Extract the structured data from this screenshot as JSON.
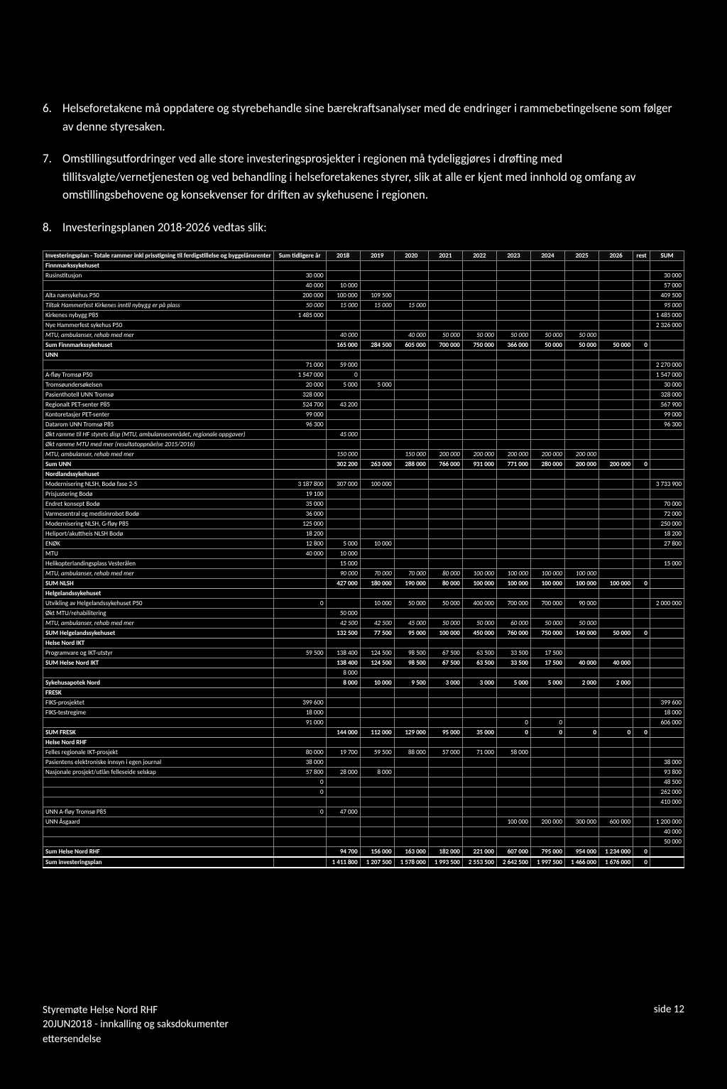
{
  "paragraphs": {
    "p6_num": "6.",
    "p6": "Helseforetakene må oppdatere og styrebehandle sine bærekraftsanalyser med de endringer i rammebetingelsene som følger av denne styresaken.",
    "p7_num": "7.",
    "p7": "Omstillingsutfordringer ved alle store investeringsprosjekter i regionen må tydeliggjøres i drøfting med tillitsvalgte/vernetjenesten og ved behandling i helseforetakenes styrer, slik at alle er kjent med innhold og omfang av omstillingsbehovene og konsekvenser for driften av sykehusene i regionen.",
    "p8_num": "8.",
    "p8": "Investeringsplanen 2018-2026 vedtas slik:"
  },
  "table": {
    "header_title": "Investeringsplan - Totale rammer inkl prisstigning til ferdigstillelse og byggelånsrenter",
    "columns": [
      "Sum tidligere år",
      "2018",
      "2019",
      "2020",
      "2021",
      "2022",
      "2023",
      "2024",
      "2025",
      "2026",
      "rest",
      "SUM"
    ],
    "rows": [
      {
        "type": "section",
        "label": "Finnmarkssykehuset"
      },
      {
        "label": "Rusinstitusjon",
        "vals": [
          "30 000",
          "",
          "",
          "",
          "",
          "",
          "",
          "",
          "",
          "",
          "",
          "30 000"
        ]
      },
      {
        "label": "",
        "vals": [
          "40 000",
          "10 000",
          "",
          "",
          "",
          "",
          "",
          "",
          "",
          "",
          "",
          "57 000"
        ]
      },
      {
        "label": "Alta nærsykehus P50",
        "vals": [
          "200 000",
          "100 000",
          "109 500",
          "",
          "",
          "",
          "",
          "",
          "",
          "",
          "",
          "409 500"
        ]
      },
      {
        "label": "Tiltak Hammerfest Kirkenes inntil nybygg er på plass",
        "italic": true,
        "vals": [
          "50 000",
          "15 000",
          "15 000",
          "15 000",
          "",
          "",
          "",
          "",
          "",
          "",
          "",
          "95 000"
        ]
      },
      {
        "label": "Kirkenes nybygg P85",
        "vals": [
          "1 485 000",
          "",
          "",
          "",
          "",
          "",
          "",
          "",
          "",
          "",
          "",
          "1 485 000"
        ]
      },
      {
        "label": "Nye Hammerfest sykehus P50",
        "vals": [
          "",
          "",
          "",
          "",
          "",
          "",
          "",
          "",
          "",
          "",
          "",
          "2 326 000"
        ]
      },
      {
        "label": "MTU, ambulanser, rehab med mer",
        "italic": true,
        "vals": [
          "",
          "40 000",
          "",
          "40 000",
          "50 000",
          "50 000",
          "50 000",
          "50 000",
          "50 000",
          "",
          "",
          ""
        ]
      },
      {
        "type": "sum",
        "label": "Sum Finnmarkssykehuset",
        "vals": [
          "",
          "165 000",
          "284 500",
          "605 000",
          "700 000",
          "750 000",
          "366 000",
          "50 000",
          "50 000",
          "50 000",
          "0",
          ""
        ]
      },
      {
        "type": "section",
        "label": "UNN"
      },
      {
        "label": "",
        "vals": [
          "71 000",
          "59 000",
          "",
          "",
          "",
          "",
          "",
          "",
          "",
          "",
          "",
          "2 270 000"
        ]
      },
      {
        "label": "A-fløy Tromsø P50",
        "vals": [
          "1 547 000",
          "0",
          "",
          "",
          "",
          "",
          "",
          "",
          "",
          "",
          "",
          "1 547 000"
        ]
      },
      {
        "label": "Tromsøundersøkelsen",
        "vals": [
          "20 000",
          "5 000",
          "5 000",
          "",
          "",
          "",
          "",
          "",
          "",
          "",
          "",
          "30 000"
        ]
      },
      {
        "label": "Pasienthotell UNN Tromsø",
        "vals": [
          "328 000",
          "",
          "",
          "",
          "",
          "",
          "",
          "",
          "",
          "",
          "",
          "328 000"
        ]
      },
      {
        "label": "Regionalt PET-senter P85",
        "vals": [
          "524 700",
          "43 200",
          "",
          "",
          "",
          "",
          "",
          "",
          "",
          "",
          "",
          "567 900"
        ]
      },
      {
        "label": "Kontoretasjer PET-senter",
        "vals": [
          "99 000",
          "",
          "",
          "",
          "",
          "",
          "",
          "",
          "",
          "",
          "",
          "99 000"
        ]
      },
      {
        "label": "Datarom UNN Tromsø P85",
        "vals": [
          "96 300",
          "",
          "",
          "",
          "",
          "",
          "",
          "",
          "",
          "",
          "",
          "96 300"
        ]
      },
      {
        "label": "Økt ramme til HF styrets disp (MTU, ambulanseområdet, regionale oppgaver)",
        "italic": true,
        "vals": [
          "",
          "45 000",
          "",
          "",
          "",
          "",
          "",
          "",
          "",
          "",
          "",
          ""
        ]
      },
      {
        "label": "Økt ramme MTU med mer (resultatoppnåelse 2015/2016)",
        "italic": true,
        "vals": [
          "",
          "",
          "",
          "",
          "",
          "",
          "",
          "",
          "",
          "",
          "",
          ""
        ]
      },
      {
        "label": "MTU, ambulanser, rehab med mer",
        "italic": true,
        "vals": [
          "",
          "150 000",
          "",
          "150 000",
          "200 000",
          "200 000",
          "200 000",
          "200 000",
          "200 000",
          "",
          "",
          ""
        ]
      },
      {
        "type": "sum",
        "label": "Sum UNN",
        "vals": [
          "",
          "302 200",
          "263 000",
          "288 000",
          "766 000",
          "931 000",
          "771 000",
          "280 000",
          "200 000",
          "200 000",
          "0",
          ""
        ]
      },
      {
        "type": "section",
        "label": "Nordlandssykehuset"
      },
      {
        "label": "Modernisering NLSH, Bodø fase 2-5",
        "vals": [
          "3 187 800",
          "307 000",
          "100 000",
          "",
          "",
          "",
          "",
          "",
          "",
          "",
          "",
          "3 733 900"
        ]
      },
      {
        "label": "Prisjustering Bodø",
        "vals": [
          "19 100",
          "",
          "",
          "",
          "",
          "",
          "",
          "",
          "",
          "",
          "",
          ""
        ]
      },
      {
        "label": "Endret konsept Bodø",
        "vals": [
          "35 000",
          "",
          "",
          "",
          "",
          "",
          "",
          "",
          "",
          "",
          "",
          "70 000"
        ]
      },
      {
        "label": "Varmesentral og medisinrobot Bodø",
        "vals": [
          "36 000",
          "",
          "",
          "",
          "",
          "",
          "",
          "",
          "",
          "",
          "",
          "72 000"
        ]
      },
      {
        "label": "Modernisering NLSH, G-fløy P85",
        "vals": [
          "125 000",
          "",
          "",
          "",
          "",
          "",
          "",
          "",
          "",
          "",
          "",
          "250 000"
        ]
      },
      {
        "label": "Heliport/akuttheis NLSH Bodø",
        "vals": [
          "18 200",
          "",
          "",
          "",
          "",
          "",
          "",
          "",
          "",
          "",
          "",
          "18 200"
        ]
      },
      {
        "label": "ENØK",
        "vals": [
          "12 800",
          "5 000",
          "10 000",
          "",
          "",
          "",
          "",
          "",
          "",
          "",
          "",
          "27 800"
        ]
      },
      {
        "label": "MTU",
        "vals": [
          "40 000",
          "10 000",
          "",
          "",
          "",
          "",
          "",
          "",
          "",
          "",
          "",
          ""
        ]
      },
      {
        "label": "Helikopterlandingsplass Vesterålen",
        "vals": [
          "",
          "15 000",
          "",
          "",
          "",
          "",
          "",
          "",
          "",
          "",
          "",
          "15 000"
        ]
      },
      {
        "label": "MTU, ambulanser, rehab med mer",
        "italic": true,
        "vals": [
          "",
          "90 000",
          "70 000",
          "70 000",
          "80 000",
          "100 000",
          "100 000",
          "100 000",
          "100 000",
          "",
          "",
          ""
        ]
      },
      {
        "type": "sum",
        "label": "SUM NLSH",
        "vals": [
          "",
          "427 000",
          "180 000",
          "190 000",
          "80 000",
          "100 000",
          "100 000",
          "100 000",
          "100 000",
          "100 000",
          "0",
          ""
        ]
      },
      {
        "type": "section",
        "label": "Helgelandssykehuset"
      },
      {
        "label": "Utvikling av Helgelandssykehuset P50",
        "vals": [
          "0",
          "",
          "10 000",
          "50 000",
          "50 000",
          "400 000",
          "700 000",
          "700 000",
          "90 000",
          "",
          "",
          "2 000 000"
        ]
      },
      {
        "label": "Økt MTU/rehabilitering",
        "vals": [
          "",
          "50 000",
          "",
          "",
          "",
          "",
          "",
          "",
          "",
          "",
          "",
          ""
        ]
      },
      {
        "label": "MTU, ambulanser, rehab med mer",
        "italic": true,
        "vals": [
          "",
          "42 500",
          "42 500",
          "45 000",
          "50 000",
          "50 000",
          "60 000",
          "50 000",
          "50 000",
          "",
          "",
          ""
        ]
      },
      {
        "type": "sum",
        "label": "SUM Helgelandssykehuset",
        "vals": [
          "",
          "132 500",
          "77 500",
          "95 000",
          "100 000",
          "450 000",
          "760 000",
          "750 000",
          "140 000",
          "50 000",
          "0",
          ""
        ]
      },
      {
        "type": "section",
        "label": "Helse Nord IKT"
      },
      {
        "label": "Programvare og IKT-utstyr",
        "vals": [
          "59 500",
          "138 400",
          "124 500",
          "98 500",
          "67 500",
          "63 500",
          "33 500",
          "17 500",
          "",
          "",
          "",
          ""
        ]
      },
      {
        "type": "sum",
        "label": "SUM Helse Nord IKT",
        "vals": [
          "",
          "138 400",
          "124 500",
          "98 500",
          "67 500",
          "63 500",
          "33 500",
          "17 500",
          "40 000",
          "40 000",
          "",
          ""
        ]
      },
      {
        "label": "",
        "vals": [
          "",
          "8 000",
          "",
          "",
          "",
          "",
          "",
          "",
          "",
          "",
          "",
          ""
        ]
      },
      {
        "type": "sum",
        "label": "Sykehusapotek Nord",
        "vals": [
          "",
          "8 000",
          "10 000",
          "9 500",
          "3 000",
          "3 000",
          "5 000",
          "5 000",
          "2 000",
          "2 000",
          "",
          ""
        ]
      },
      {
        "type": "section",
        "label": "FRESK"
      },
      {
        "label": "FIKS-prosjektet",
        "vals": [
          "399 600",
          "",
          "",
          "",
          "",
          "",
          "",
          "",
          "",
          "",
          "",
          "399 600"
        ]
      },
      {
        "label": "FIKS-testregime",
        "vals": [
          "18 000",
          "",
          "",
          "",
          "",
          "",
          "",
          "",
          "",
          "",
          "",
          "18 000"
        ]
      },
      {
        "label": "",
        "vals": [
          "91 000",
          "",
          "",
          "",
          "",
          "",
          "0",
          "0",
          "",
          "",
          "",
          "606 000"
        ]
      },
      {
        "type": "sum",
        "label": "SUM FRESK",
        "vals": [
          "",
          "144 000",
          "112 000",
          "129 000",
          "95 000",
          "35 000",
          "0",
          "0",
          "0",
          "0",
          "0",
          ""
        ]
      },
      {
        "type": "section",
        "label": "Helse Nord RHF"
      },
      {
        "label": "Felles regionale IKT-prosjekt",
        "vals": [
          "80 000",
          "19 700",
          "59 500",
          "88 000",
          "57 000",
          "71 000",
          "58 000",
          "",
          "",
          "",
          "",
          ""
        ]
      },
      {
        "label": "Pasientens elektroniske innsyn i egen journal",
        "vals": [
          "38 000",
          "",
          "",
          "",
          "",
          "",
          "",
          "",
          "",
          "",
          "",
          "38 000"
        ]
      },
      {
        "label": "Nasjonale prosjekt/utlån felleseide selskap",
        "vals": [
          "57 800",
          "28 000",
          "8 000",
          "",
          "",
          "",
          "",
          "",
          "",
          "",
          "",
          "93 800"
        ]
      },
      {
        "label": "",
        "vals": [
          "0",
          "",
          "",
          "",
          "",
          "",
          "",
          "",
          "",
          "",
          "",
          "48 500"
        ]
      },
      {
        "label": "",
        "vals": [
          "0",
          "",
          "",
          "",
          "",
          "",
          "",
          "",
          "",
          "",
          "",
          "262 000"
        ]
      },
      {
        "label": "",
        "vals": [
          "",
          "",
          "",
          "",
          "",
          "",
          "",
          "",
          "",
          "",
          "",
          "410 000"
        ]
      },
      {
        "label": "UNN A-fløy Tromsø P85",
        "vals": [
          "0",
          "47 000",
          "",
          "",
          "",
          "",
          "",
          "",
          "",
          "",
          "",
          ""
        ]
      },
      {
        "label": "UNN Åsgaard",
        "vals": [
          "",
          "",
          "",
          "",
          "",
          "",
          "100 000",
          "200 000",
          "300 000",
          "600 000",
          "",
          "1 200 000"
        ]
      },
      {
        "label": "",
        "vals": [
          "",
          "",
          "",
          "",
          "",
          "",
          "",
          "",
          "",
          "",
          "",
          "40 000"
        ]
      },
      {
        "label": "",
        "vals": [
          "",
          "",
          "",
          "",
          "",
          "",
          "",
          "",
          "",
          "",
          "",
          "50 000"
        ]
      },
      {
        "type": "sum",
        "label": "Sum Helse Nord RHF",
        "vals": [
          "",
          "94 700",
          "156 000",
          "163 000",
          "182 000",
          "221 000",
          "607 000",
          "795 000",
          "954 000",
          "1 234 000",
          "0",
          ""
        ]
      },
      {
        "type": "grand",
        "label": "Sum investeringsplan",
        "vals": [
          "",
          "1 411 800",
          "1 207 500",
          "1 578 000",
          "1 993 500",
          "2 553 500",
          "2 642 500",
          "1 997 500",
          "1 466 000",
          "1 676 000",
          "0",
          ""
        ]
      }
    ]
  },
  "footer": {
    "line1": "Styremøte Helse Nord RHF",
    "line2": "20JUN2018 - innkalling og saksdokumenter",
    "line3": "ettersendelse",
    "page": "side 12"
  },
  "style": {
    "bg": "#000000",
    "fg": "#ffffff",
    "border": "#888888"
  }
}
